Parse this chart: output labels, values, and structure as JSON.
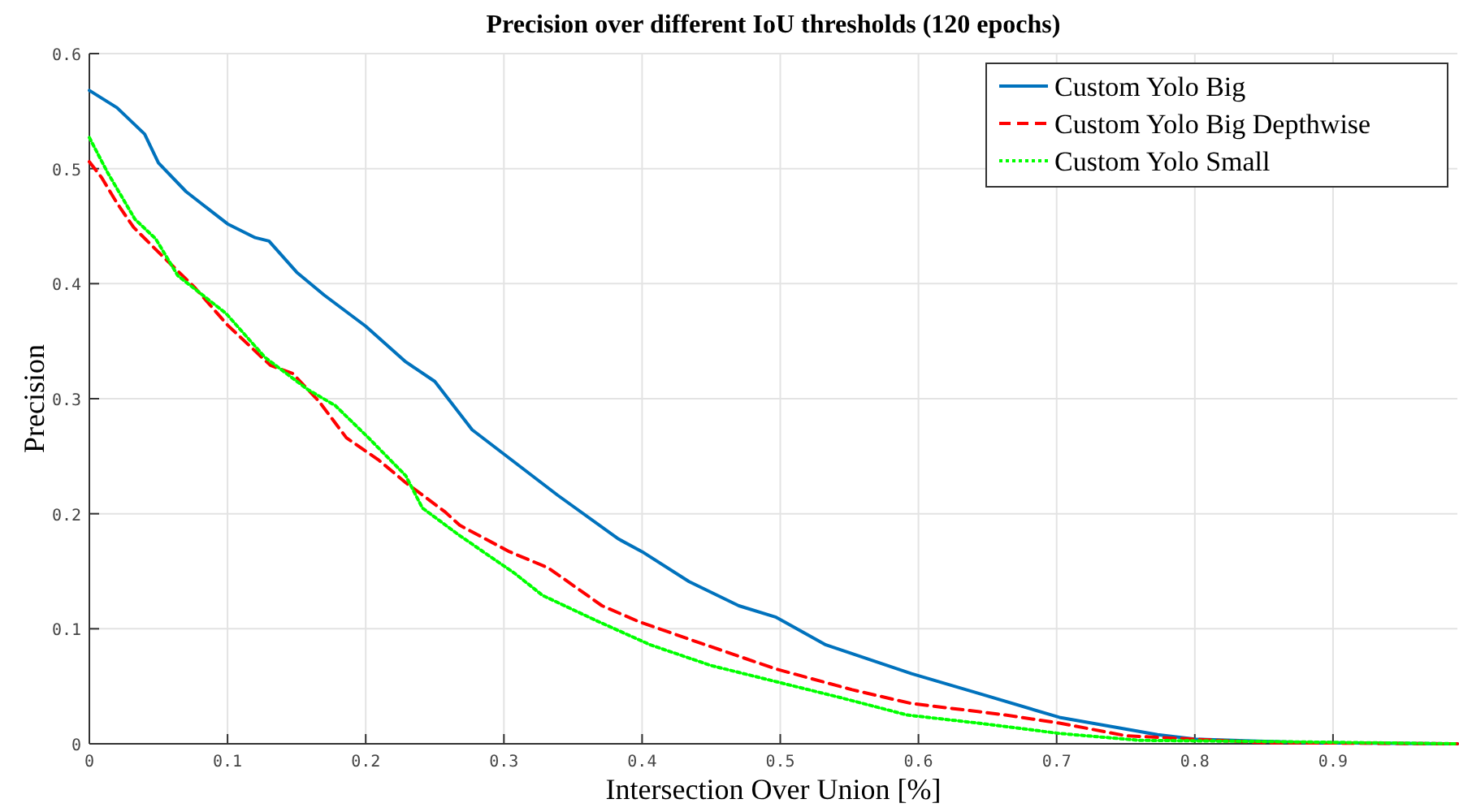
{
  "chart_data": {
    "type": "line",
    "title": "Precision over different IoU thresholds (120 epochs)",
    "xlabel": "Intersection Over Union [%]",
    "ylabel": "Precision",
    "xlim": [
      0,
      0.99
    ],
    "ylim": [
      0,
      0.6
    ],
    "xticks": [
      0,
      0.1,
      0.2,
      0.3,
      0.4,
      0.5,
      0.6,
      0.7,
      0.8,
      0.9
    ],
    "yticks": [
      0,
      0.1,
      0.2,
      0.3,
      0.4,
      0.5,
      0.6
    ],
    "grid": true,
    "legend": "top right",
    "series": [
      {
        "name": "Custom Yolo Big",
        "color": "#0072bd",
        "line_style": "solid",
        "x": [
          0,
          0.02,
          0.04,
          0.05,
          0.07,
          0.1,
          0.12,
          0.13,
          0.15,
          0.17,
          0.2,
          0.229,
          0.25,
          0.277,
          0.339,
          0.383,
          0.4,
          0.434,
          0.47,
          0.497,
          0.533,
          0.595,
          0.643,
          0.702,
          0.773,
          0.8,
          0.88,
          0.99
        ],
        "values": [
          0.568,
          0.553,
          0.53,
          0.505,
          0.48,
          0.452,
          0.44,
          0.437,
          0.41,
          0.39,
          0.363,
          0.332,
          0.315,
          0.273,
          0.216,
          0.178,
          0.167,
          0.141,
          0.12,
          0.11,
          0.086,
          0.061,
          0.044,
          0.023,
          0.008,
          0.004,
          0.001,
          0
        ]
      },
      {
        "name": "Custom Yolo Big Depthwise",
        "color": "#ff0000",
        "line_style": "dashed",
        "x": [
          0,
          0.009,
          0.02,
          0.032,
          0.052,
          0.076,
          0.1,
          0.131,
          0.147,
          0.166,
          0.186,
          0.209,
          0.229,
          0.257,
          0.268,
          0.304,
          0.332,
          0.371,
          0.398,
          0.446,
          0.497,
          0.552,
          0.595,
          0.643,
          0.663,
          0.702,
          0.75,
          0.8,
          0.85,
          0.99
        ],
        "values": [
          0.506,
          0.492,
          0.47,
          0.449,
          0.425,
          0.397,
          0.364,
          0.329,
          0.322,
          0.298,
          0.266,
          0.247,
          0.227,
          0.202,
          0.19,
          0.167,
          0.153,
          0.12,
          0.106,
          0.086,
          0.065,
          0.047,
          0.035,
          0.028,
          0.025,
          0.018,
          0.007,
          0.004,
          0.001,
          0
        ]
      },
      {
        "name": "Custom Yolo Small",
        "color": "#00ff00",
        "line_style": "dotted",
        "x": [
          0,
          0.013,
          0.033,
          0.048,
          0.064,
          0.099,
          0.127,
          0.158,
          0.178,
          0.202,
          0.229,
          0.241,
          0.268,
          0.308,
          0.328,
          0.367,
          0.406,
          0.45,
          0.497,
          0.544,
          0.592,
          0.643,
          0.702,
          0.76,
          0.85,
          0.99
        ],
        "values": [
          0.527,
          0.497,
          0.456,
          0.439,
          0.407,
          0.374,
          0.336,
          0.308,
          0.294,
          0.266,
          0.233,
          0.205,
          0.181,
          0.148,
          0.129,
          0.107,
          0.086,
          0.068,
          0.054,
          0.04,
          0.025,
          0.018,
          0.009,
          0.003,
          0.002,
          0
        ]
      }
    ]
  }
}
